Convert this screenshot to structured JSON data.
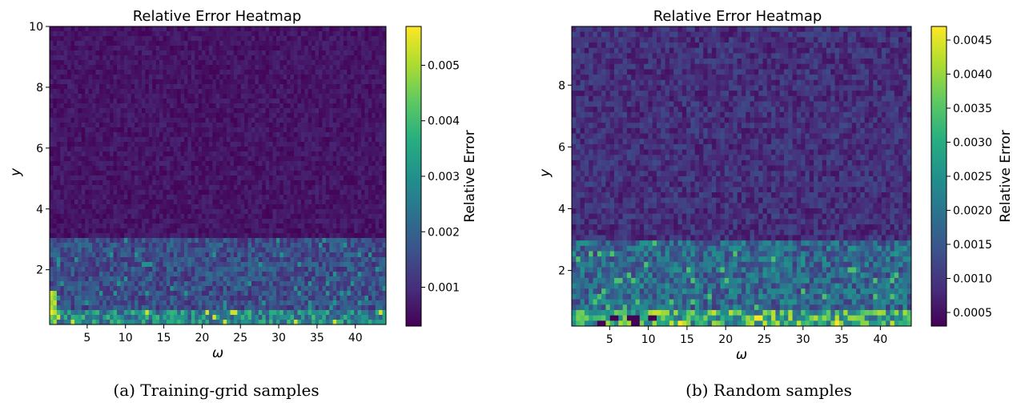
{
  "captions": {
    "a": "(a) Training-grid samples",
    "b": "(b) Random samples"
  },
  "chart_data": [
    {
      "type": "heatmap",
      "title": "Relative Error Heatmap",
      "xlabel": "ω",
      "ylabel": "y",
      "colorbar_label": "Relative Error",
      "colormap": "viridis",
      "xlim": [
        0.1,
        44
      ],
      "ylim": [
        0.2,
        10
      ],
      "x_ticks": [
        5,
        10,
        15,
        20,
        25,
        30,
        35,
        40
      ],
      "y_ticks": [
        2,
        4,
        6,
        8,
        10
      ],
      "cbar_range": [
        0.0003,
        0.0057
      ],
      "cbar_ticks": [
        0.001,
        0.002,
        0.003,
        0.004,
        0.005
      ],
      "cbar_tick_labels": [
        "0.001",
        "0.002",
        "0.003",
        "0.004",
        "0.005"
      ],
      "grid": false,
      "description_levels": {
        "y_above_3": 0.0006,
        "y_below_3": 0.0016,
        "near_y_0.3": 0.0028
      }
    },
    {
      "type": "heatmap",
      "title": "Relative Error Heatmap",
      "xlabel": "ω",
      "ylabel": "y",
      "colorbar_label": "Relative Error",
      "colormap": "viridis",
      "xlim": [
        0.1,
        44
      ],
      "ylim": [
        0.2,
        9.9
      ],
      "x_ticks": [
        5,
        10,
        15,
        20,
        25,
        30,
        35,
        40
      ],
      "y_ticks": [
        2,
        4,
        6,
        8
      ],
      "cbar_range": [
        0.0003,
        0.0047
      ],
      "cbar_ticks": [
        0.0005,
        0.001,
        0.0015,
        0.002,
        0.0025,
        0.003,
        0.0035,
        0.004,
        0.0045
      ],
      "cbar_tick_labels": [
        "0.0005",
        "0.0010",
        "0.0015",
        "0.0020",
        "0.0025",
        "0.0030",
        "0.0035",
        "0.0040",
        "0.0045"
      ],
      "grid": false,
      "description_levels": {
        "y_above_3": 0.0009,
        "y_below_3": 0.0018,
        "near_y_0.3": 0.003
      }
    }
  ]
}
